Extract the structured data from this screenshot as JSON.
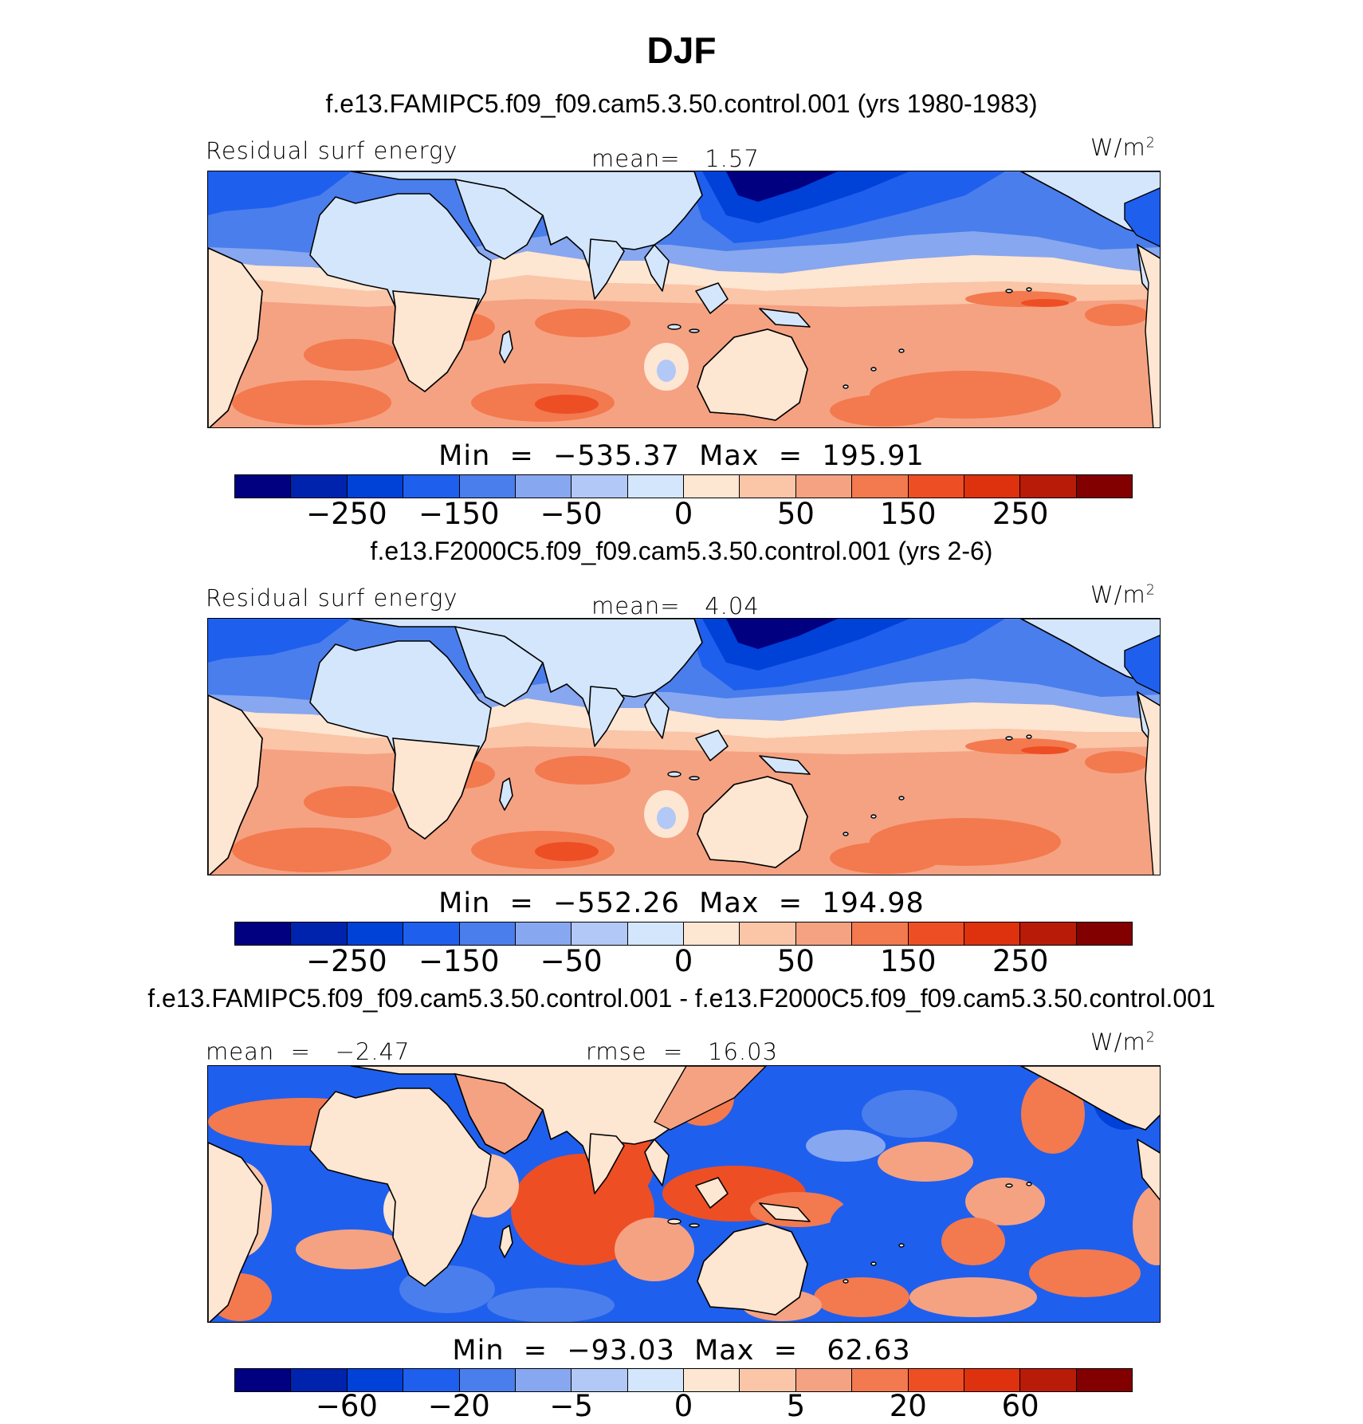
{
  "chart_data": {
    "type": "heatmap",
    "title": "DJF",
    "colors": [
      "#000080",
      "#0023ad",
      "#0041d8",
      "#1f5fed",
      "#4a7eec",
      "#87a7f0",
      "#b2c8f6",
      "#d4e6fb",
      "#fde6d2",
      "#fbc5a8",
      "#f5a282",
      "#f3794f",
      "#ee4e24",
      "#de310e",
      "#b81b08",
      "#820000"
    ],
    "panels": [
      {
        "case_title": "f.e13.FAMIPC5.f09_f09.cam5.3.50.control.001 (yrs 1980-1983)",
        "left_label": "Residual surf energy",
        "center_label": "mean=   1.57",
        "units_base": "W/m",
        "units_exp": "2",
        "stats": "Min  =  −535.37  Max  =  195.91",
        "colorbar_ticks": [
          "−250",
          "−150",
          "−50",
          "0",
          "50",
          "150",
          "250"
        ],
        "variant": "mean"
      },
      {
        "case_title": "f.e13.F2000C5.f09_f09.cam5.3.50.control.001 (yrs 2-6)",
        "left_label": "Residual surf energy",
        "center_label": "mean=   4.04",
        "units_base": "W/m",
        "units_exp": "2",
        "stats": "Min  =  −552.26  Max  =  194.98",
        "colorbar_ticks": [
          "−250",
          "−150",
          "−50",
          "0",
          "50",
          "150",
          "250"
        ],
        "variant": "mean"
      },
      {
        "case_title": "f.e13.FAMIPC5.f09_f09.cam5.3.50.control.001 - f.e13.F2000C5.f09_f09.cam5.3.50.control.001",
        "left_label": "mean  =   −2.47",
        "center_label": "rmse  =   16.03",
        "units_base": "W/m",
        "units_exp": "2",
        "stats": "Min  =  −93.03  Max  =   62.63",
        "colorbar_ticks": [
          "−60",
          "−20",
          "−5",
          "0",
          "5",
          "20",
          "60"
        ],
        "variant": "diff"
      }
    ]
  }
}
